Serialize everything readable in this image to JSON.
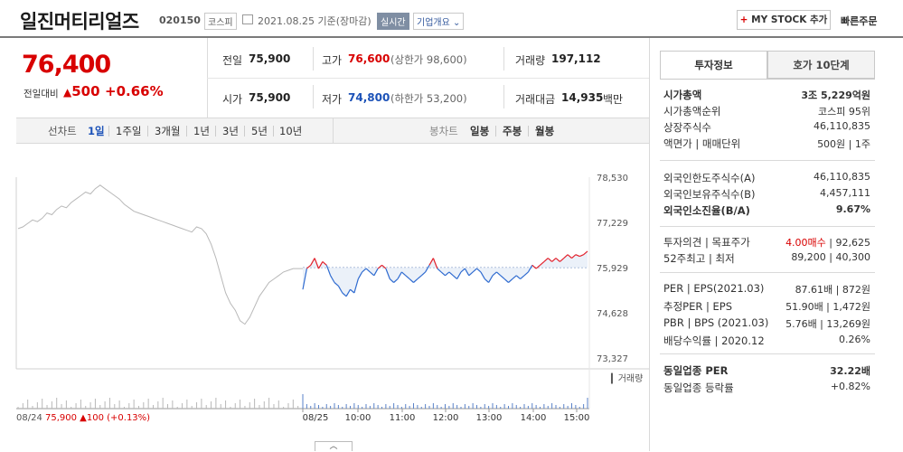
{
  "header": {
    "stock_name": "일진머티리얼즈",
    "stock_code": "020150",
    "market": "코스피",
    "date_text": "2021.08.25 기준(장마감)",
    "realtime": "실시간",
    "company_overview": "기업개요",
    "mystock_plus": "+",
    "mystock_label": "MY STOCK 추가",
    "quick_order": "빠른주문"
  },
  "price": {
    "current": "76,400",
    "prev_label": "전일대비",
    "change_arrow": "▲",
    "change": "500",
    "change_pct": "+0.66%"
  },
  "info": {
    "prev_label": "전일",
    "prev_val": "75,900",
    "high_label": "고가",
    "high_val": "76,600",
    "upper_limit": "(상한가 98,600)",
    "volume_label": "거래량",
    "volume_val": "197,112",
    "open_label": "시가",
    "open_val": "75,900",
    "low_label": "저가",
    "low_val": "74,800",
    "lower_limit": "(하한가 53,200)",
    "amount_label": "거래대금",
    "amount_val": "14,935",
    "amount_unit": "백만"
  },
  "chart_tabs": {
    "line_label": "선차트",
    "periods": [
      "1일",
      "1주일",
      "3개월",
      "1년",
      "3년",
      "5년",
      "10년"
    ],
    "candle_label": "봉차트",
    "candles": [
      "일봉",
      "주봉",
      "월봉"
    ]
  },
  "right_panel": {
    "tab_invest": "투자정보",
    "tab_orderbook": "호가 10단계",
    "rows_a": [
      {
        "label": "시가총액",
        "value": "3조 5,229억원"
      },
      {
        "label": "시가총액순위",
        "value": "코스피 95위"
      },
      {
        "label": "상장주식수",
        "value": "46,110,835"
      },
      {
        "label": "액면가 | 매매단위",
        "value": "500원 | 1주"
      }
    ],
    "rows_b": [
      {
        "label": "외국인한도주식수(A)",
        "value": "46,110,835"
      },
      {
        "label": "외국인보유주식수(B)",
        "value": "4,457,111"
      },
      {
        "label": "외국인소진율(B/A)",
        "value": "9.67%"
      }
    ],
    "rows_c": [
      {
        "label": "투자의견 | 목표주가",
        "value_red": "4.00매수",
        "value": "| 92,625"
      },
      {
        "label": "52주최고 | 최저",
        "value": "89,200 | 40,300"
      }
    ],
    "rows_d": [
      {
        "label": "PER | EPS(2021.03)",
        "value": "87.61배 | 872원"
      },
      {
        "label": "추정PER | EPS",
        "value": "51.90배 | 1,472원"
      },
      {
        "label": "PBR | BPS (2021.03)",
        "value": "5.76배 | 13,269원"
      },
      {
        "label": "배당수익률 | 2020.12",
        "value": "0.26%"
      }
    ],
    "rows_e": [
      {
        "label": "동일업종 PER",
        "value": "32.22배"
      },
      {
        "label": "동일업종 등락률",
        "value": "+0.82%"
      }
    ]
  },
  "chart_data": {
    "type": "line",
    "y_ticks": [
      "78,530",
      "77,229",
      "75,929",
      "74,628",
      "73,327"
    ],
    "ylim": [
      73327,
      78530
    ],
    "baseline": 75929,
    "x_ticks": [
      "08/25",
      "10:00",
      "11:00",
      "12:00",
      "13:00",
      "14:00",
      "15:00"
    ],
    "volume_label": "거래량",
    "prev_day": {
      "date": "08/24",
      "close": "75,900",
      "arrow": "▲",
      "change": "100",
      "pct": "(+0.13%)"
    },
    "prev_day_series": [
      77050,
      77100,
      77200,
      77300,
      77250,
      77350,
      77500,
      77450,
      77600,
      77700,
      77650,
      77800,
      77900,
      78000,
      78100,
      78050,
      78200,
      78300,
      78200,
      78100,
      78000,
      77900,
      77750,
      77650,
      77550,
      77500,
      77450,
      77400,
      77350,
      77300,
      77250,
      77200,
      77150,
      77100,
      77050,
      77000,
      76950,
      77100,
      77050,
      76900,
      76600,
      76200,
      75700,
      75200,
      74900,
      74700,
      74400,
      74300,
      74500,
      74800,
      75100,
      75300,
      75500,
      75600,
      75700,
      75800,
      75850,
      75900,
      75900,
      75900
    ],
    "today_series": [
      75300,
      75900,
      76000,
      76200,
      75900,
      76100,
      76000,
      75700,
      75500,
      75400,
      75200,
      75100,
      75300,
      75200,
      75600,
      75800,
      75900,
      75800,
      75700,
      75900,
      76000,
      75900,
      75600,
      75500,
      75600,
      75800,
      75700,
      75600,
      75500,
      75600,
      75700,
      75800,
      76000,
      76200,
      75900,
      75800,
      75700,
      75800,
      75700,
      75600,
      75800,
      75900,
      75700,
      75800,
      75900,
      75800,
      75600,
      75500,
      75700,
      75800,
      75700,
      75600,
      75500,
      75600,
      75700,
      75600,
      75700,
      75800,
      76000,
      75900,
      76000,
      76100,
      76200,
      76100,
      76200,
      76100,
      76200,
      76300,
      76200,
      76300,
      76250,
      76300,
      76400
    ]
  }
}
